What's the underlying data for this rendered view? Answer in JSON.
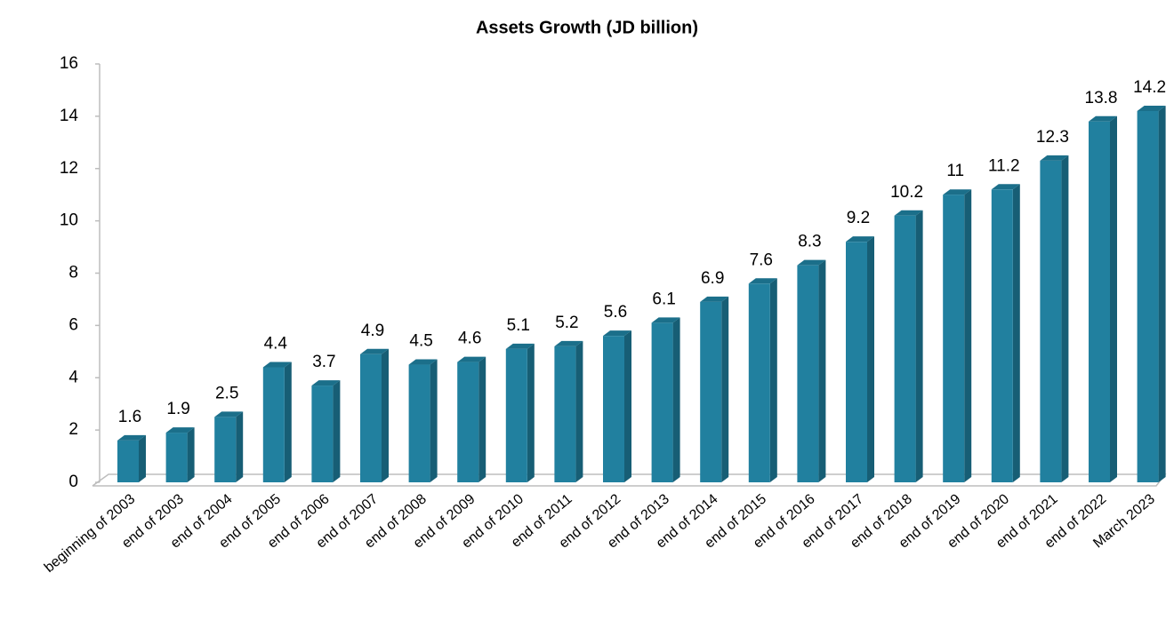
{
  "chart_data": {
    "type": "bar3d",
    "title": "Assets Growth (JD billion)",
    "categories": [
      "beginning of 2003",
      "end of 2003",
      "end of 2004",
      "end of 2005",
      "end of 2006",
      "end of 2007",
      "end of 2008",
      "end of 2009",
      "end of 2010",
      "end of 2011",
      "end of 2012",
      "end of 2013",
      "end of 2014",
      "end of 2015",
      "end of 2016",
      "end of 2017",
      "end of 2018",
      "end of 2019",
      "end of 2020",
      "end of 2021",
      "end of 2022",
      "March 2023"
    ],
    "values": [
      1.6,
      1.9,
      2.5,
      4.4,
      3.7,
      4.9,
      4.5,
      4.6,
      5.1,
      5.2,
      5.6,
      6.1,
      6.9,
      7.6,
      8.3,
      9.2,
      10.2,
      11,
      11.2,
      12.3,
      13.8,
      14.2
    ],
    "color": "#21809f",
    "ylim": [
      0,
      16
    ],
    "yticks": [
      0,
      2,
      4,
      6,
      8,
      10,
      12,
      14,
      16
    ],
    "grid": false
  }
}
